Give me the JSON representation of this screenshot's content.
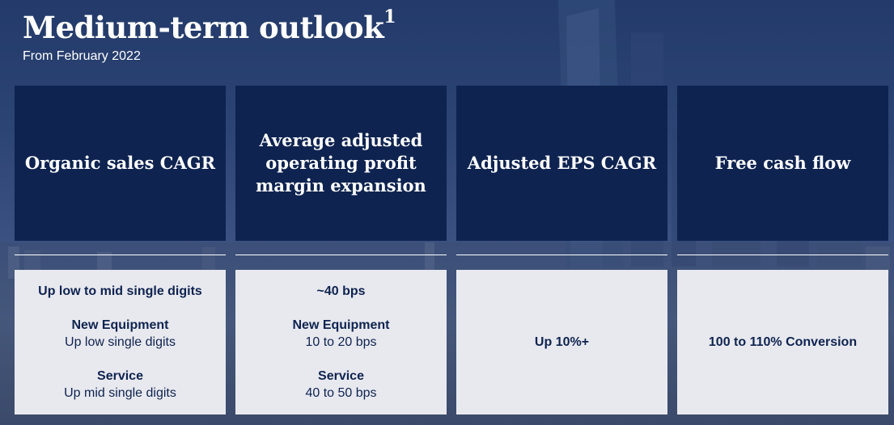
{
  "title": "Medium-term outlook",
  "title_footnote": "1",
  "subtitle": "From February 2022",
  "colors": {
    "header_bg": "#0e2350",
    "body_bg": "#e8e9ef",
    "text_dark": "#0e2350"
  },
  "cards": [
    {
      "header": "Organic sales CAGR",
      "headline": "Up low to mid single digits",
      "items": [
        {
          "label": "New Equipment",
          "value": "Up low single digits"
        },
        {
          "label": "Service",
          "value": "Up mid single digits"
        }
      ]
    },
    {
      "header": "Average adjusted operating profit margin expansion",
      "headline": "~40 bps",
      "items": [
        {
          "label": "New Equipment",
          "value": "10 to 20 bps"
        },
        {
          "label": "Service",
          "value": "40 to 50 bps"
        }
      ]
    },
    {
      "header": "Adjusted EPS CAGR",
      "headline": "Up 10%+"
    },
    {
      "header": "Free cash flow",
      "headline": "100 to 110% Conversion"
    }
  ]
}
